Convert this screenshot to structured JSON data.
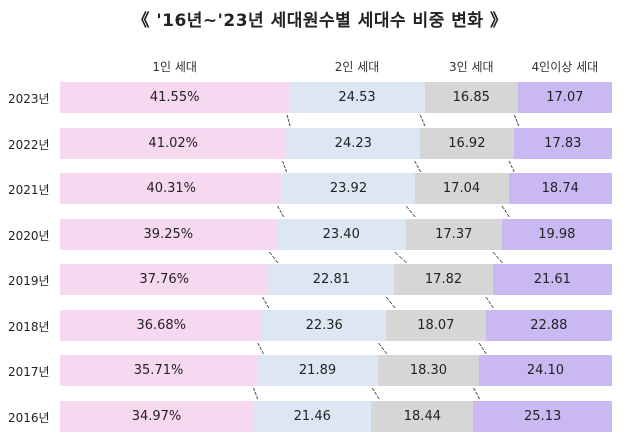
{
  "title": "《 '16년~'23년 세대원수별 세대수 비중 변화 》",
  "chart_data": {
    "type": "bar",
    "stacked": true,
    "orientation": "horizontal",
    "series_labels": [
      "1인 세대",
      "2인 세대",
      "3인 세대",
      "4인이상 세대"
    ],
    "categories": [
      "2023년",
      "2022년",
      "2021년",
      "2020년",
      "2019년",
      "2018년",
      "2017년",
      "2016년"
    ],
    "series": [
      {
        "name": "1인 세대",
        "color": "#f6d9f1",
        "values": [
          41.55,
          41.02,
          40.31,
          39.25,
          37.76,
          36.68,
          35.71,
          34.97
        ],
        "labels": [
          "41.55%",
          "41.02%",
          "40.31%",
          "39.25%",
          "37.76%",
          "36.68%",
          "35.71%",
          "34.97%"
        ]
      },
      {
        "name": "2인 세대",
        "color": "#dce7f3",
        "values": [
          24.53,
          24.23,
          23.92,
          23.4,
          22.81,
          22.36,
          21.89,
          21.46
        ],
        "labels": [
          "24.53",
          "24.23",
          "23.92",
          "23.40",
          "22.81",
          "22.36",
          "21.89",
          "21.46"
        ]
      },
      {
        "name": "3인 세대",
        "color": "#d6d6d6",
        "values": [
          16.85,
          16.92,
          17.04,
          17.37,
          17.82,
          18.07,
          18.3,
          18.44
        ],
        "labels": [
          "16.85",
          "16.92",
          "17.04",
          "17.37",
          "17.82",
          "18.07",
          "18.30",
          "18.44"
        ]
      },
      {
        "name": "4인이상 세대",
        "color": "#c9b8f2",
        "values": [
          17.07,
          17.83,
          18.74,
          19.98,
          21.61,
          22.88,
          24.1,
          25.13
        ],
        "labels": [
          "17.07",
          "17.83",
          "18.74",
          "19.98",
          "21.61",
          "22.88",
          "24.10",
          "25.13"
        ]
      }
    ],
    "dashed_boundary_lines": true
  }
}
